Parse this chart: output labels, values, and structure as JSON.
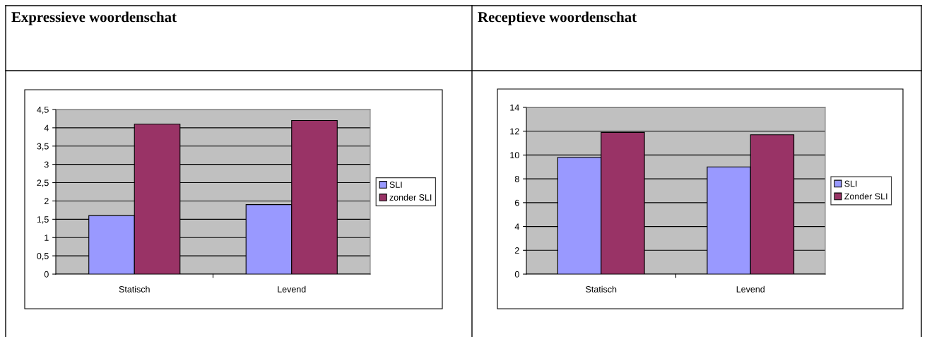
{
  "chart_data": [
    {
      "type": "bar",
      "title": "Expressieve woordenschat",
      "categories": [
        "Statisch",
        "Levend"
      ],
      "series": [
        {
          "name": "SLI",
          "color": "#9999ff",
          "values": [
            1.6,
            1.9
          ]
        },
        {
          "name": "zonder SLI",
          "color": "#993366",
          "values": [
            4.1,
            4.2
          ]
        }
      ],
      "ylim": [
        0,
        4.5
      ],
      "yticks": [
        0,
        {
          "value": 0.5,
          "label": "0,5"
        },
        1,
        {
          "value": 1.5,
          "label": "1,5"
        },
        2,
        {
          "value": 2.5,
          "label": "2,5"
        },
        3,
        {
          "value": 3.5,
          "label": "3,5"
        },
        4,
        {
          "value": 4.5,
          "label": "4,5"
        }
      ],
      "grid": "y",
      "legend": "right"
    },
    {
      "type": "bar",
      "title": "Receptieve woordenschat",
      "categories": [
        "Statisch",
        "Levend"
      ],
      "series": [
        {
          "name": "SLI",
          "color": "#9999ff",
          "values": [
            9.8,
            9.0
          ]
        },
        {
          "name": "Zonder SLI",
          "color": "#993366",
          "values": [
            11.9,
            11.7
          ]
        }
      ],
      "ylim": [
        0,
        14
      ],
      "yticks": [
        0,
        2,
        4,
        6,
        8,
        10,
        12,
        14
      ],
      "grid": "y",
      "legend": "right"
    }
  ]
}
